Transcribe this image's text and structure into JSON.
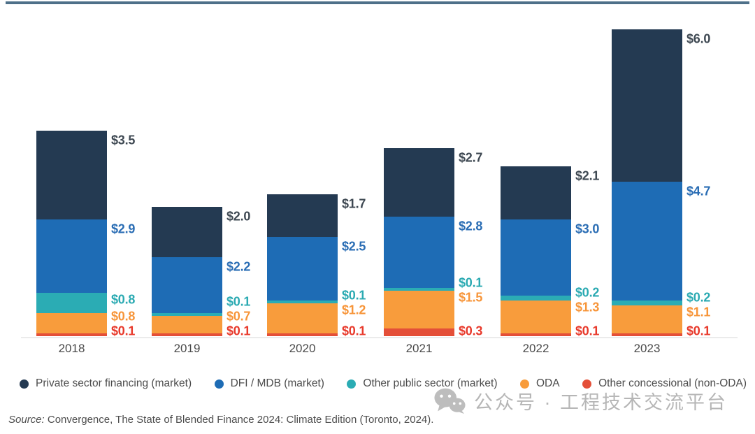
{
  "chart_data": {
    "type": "bar",
    "variant": "stacked-vertical",
    "title": "",
    "xlabel": "",
    "ylabel": "",
    "value_prefix": "$",
    "categories": [
      "2018",
      "2019",
      "2020",
      "2021",
      "2022",
      "2023"
    ],
    "series": [
      {
        "name": "Private sector financing (market)",
        "color": "#243a52",
        "label_color": "#3e4852",
        "values": [
          3.5,
          2.0,
          1.7,
          2.7,
          2.1,
          6.0
        ]
      },
      {
        "name": "DFI / MDB (market)",
        "color": "#1e6cb5",
        "label_color": "#2a6db4",
        "values": [
          2.9,
          2.2,
          2.5,
          2.8,
          3.0,
          4.7
        ]
      },
      {
        "name": "Other public sector (market)",
        "color": "#2bacb4",
        "label_color": "#2baab2",
        "values": [
          0.8,
          0.1,
          0.1,
          0.1,
          0.2,
          0.2
        ]
      },
      {
        "name": "ODA",
        "color": "#f89c3c",
        "label_color": "#f79539",
        "values": [
          0.8,
          0.7,
          1.2,
          1.5,
          1.3,
          1.1
        ]
      },
      {
        "name": "Other concessional (non-ODA)",
        "color": "#e44f38",
        "label_color": "#e8392b",
        "values": [
          0.1,
          0.1,
          0.1,
          0.3,
          0.1,
          0.1
        ]
      }
    ],
    "legend_position": "bottom",
    "grid": false,
    "data_labels": "outside-right"
  },
  "source": {
    "prefix": "Source:",
    "text": " Convergence, The State of Blended Finance 2024: Climate Edition (Toronto, 2024)."
  },
  "watermark": {
    "icon": "wechat-icon",
    "text": "公众号 · 工程技术交流平台"
  }
}
